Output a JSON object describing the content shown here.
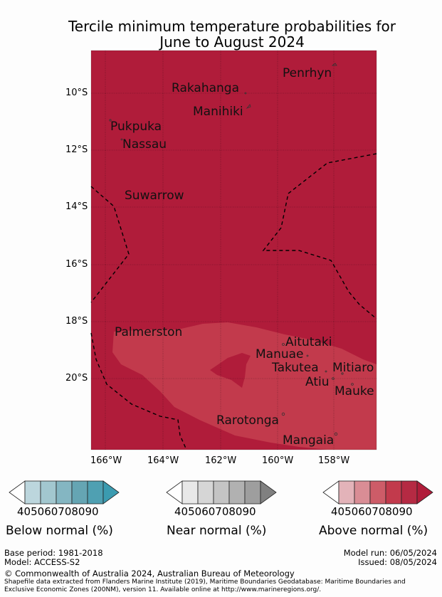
{
  "title_line1": "Tercile minimum temperature probabilities for",
  "title_line2": "June to August 2024",
  "lat_labels": [
    "10°S",
    "12°S",
    "14°S",
    "16°S",
    "18°S",
    "20°S"
  ],
  "lon_labels": [
    "166°W",
    "164°W",
    "162°W",
    "160°W",
    "158°W"
  ],
  "places": {
    "penrhyn": "Penrhyn",
    "rakahanga": "Rakahanga",
    "manihiki": "Manihiki",
    "pukapuka": "Pukpuka",
    "nassau": "Nassau",
    "suwarrow": "Suwarrow",
    "palmerston": "Palmerston",
    "aitutaki": "Aitutaki",
    "manuae": "Manuae",
    "takutea": "Takutea",
    "mitiaro": "Mitiaro",
    "atiu": "Atiu",
    "mauke": "Mauke",
    "rarotonga": "Rarotonga",
    "mangaia": "Mangaia"
  },
  "colors": {
    "above_90": "#b01c3a",
    "above_80": "#c23a4c",
    "above_70": "#cd5c68",
    "above_60": "#d98d95",
    "above_50": "#e3b3b9",
    "below": [
      "#bcd6dd",
      "#a2c7cf",
      "#84b6c2",
      "#65a5b3",
      "#3b9bb0"
    ],
    "near": [
      "#e8e8e8",
      "#d6d6d6",
      "#c4c4c4",
      "#b1b1b1",
      "#9e9e9e",
      "#808080"
    ]
  },
  "colorbars": {
    "ticks": [
      "40",
      "50",
      "60",
      "70",
      "80",
      "90"
    ],
    "below_title": "Below normal (%)",
    "near_title": "Near normal (%)",
    "above_title": "Above normal (%)"
  },
  "footer": {
    "base_period": "Base period: 1981-2018",
    "model": "Model: ACCESS-S2",
    "model_run": "Model run: 06/05/2024",
    "issued": "Issued: 08/05/2024",
    "copyright": "© Commonwealth of Australia 2024, Australian Bureau of Meteorology",
    "shapefile_line1": "Shapefile data extracted from Flanders Marine Institute (2019), Maritime Boundaries Geodatabase: Maritime Boundaries and",
    "shapefile_line2": "Exclusive Economic Zones (200NM), version 11. Available online at http://www.marineregions.org/."
  }
}
